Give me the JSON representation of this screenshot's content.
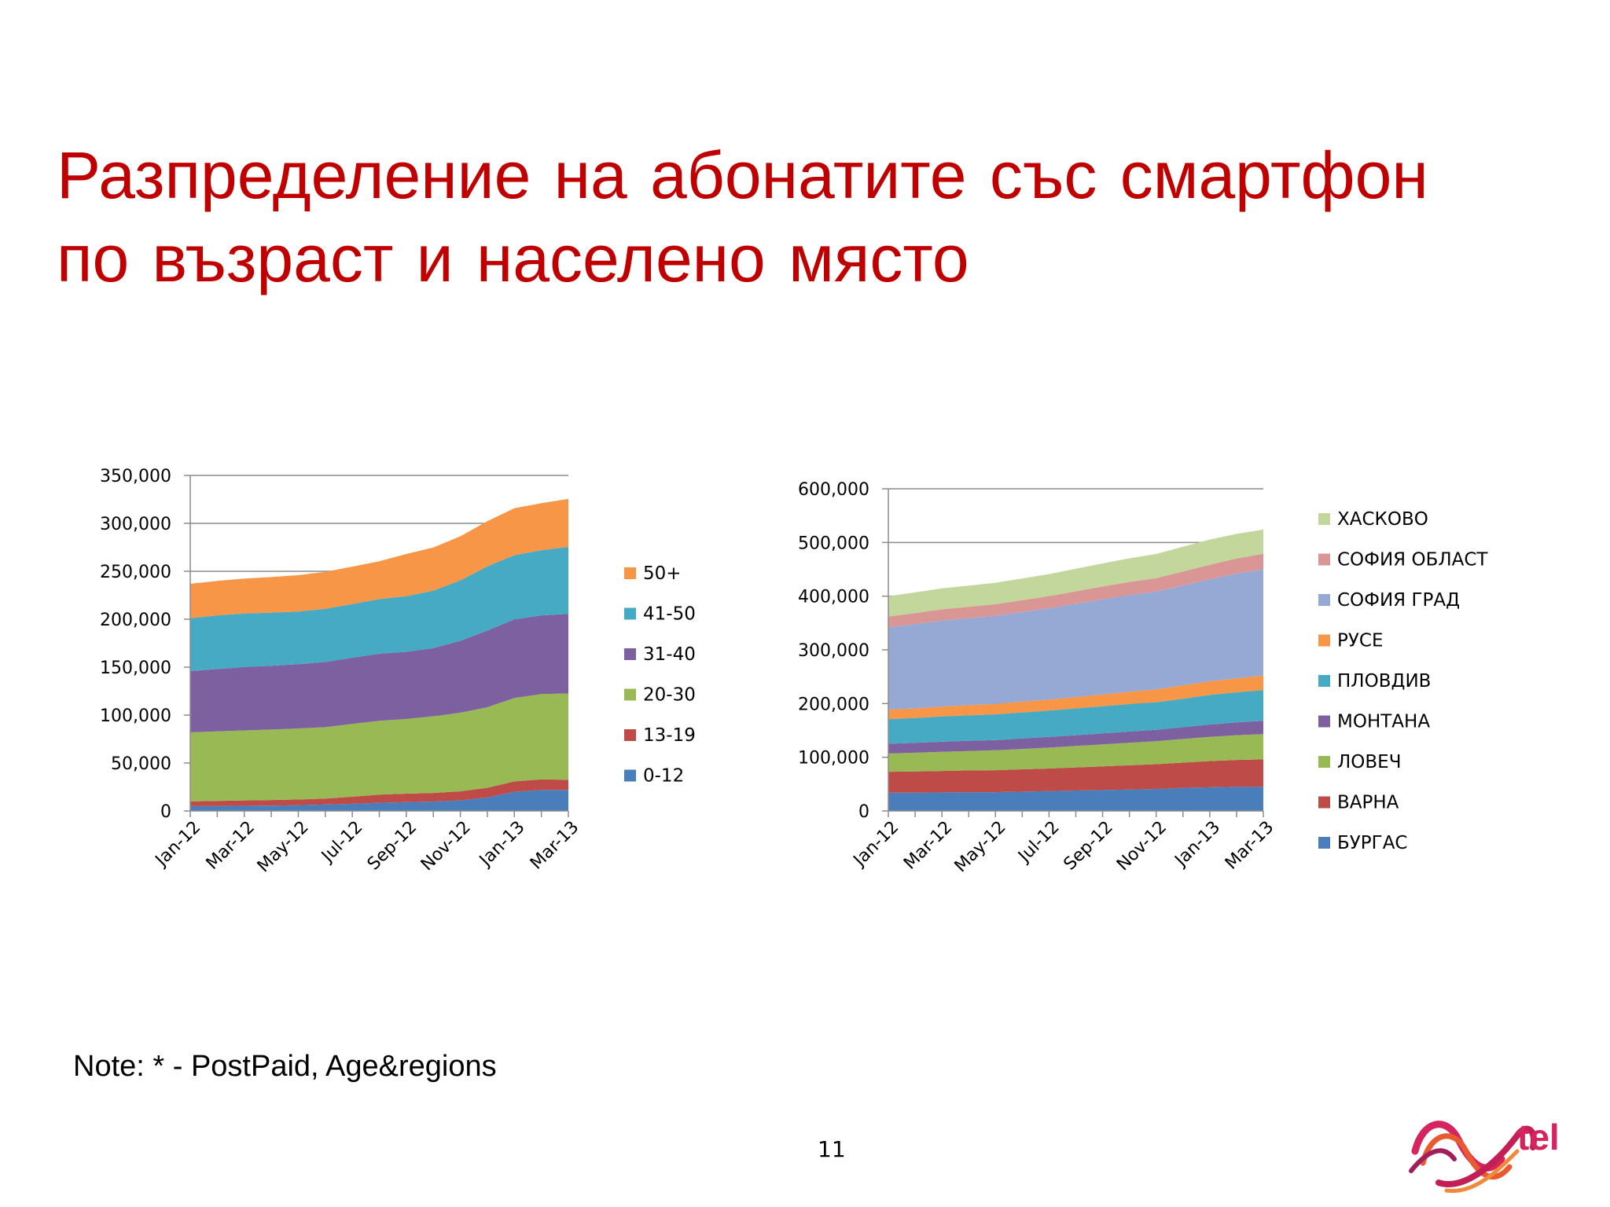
{
  "title_line1": "Разпределение на абонатите със смартфон",
  "title_line2": "по възраст и населено място",
  "note": "Note: * - PostPaid, Age&regions",
  "page_number": "11",
  "logo_text": "tel",
  "chart_data": [
    {
      "type": "area",
      "stacked": true,
      "x": [
        "Jan-12",
        "Feb-12",
        "Mar-12",
        "Apr-12",
        "May-12",
        "Jun-12",
        "Jul-12",
        "Aug-12",
        "Sep-12",
        "Oct-12",
        "Nov-12",
        "Dec-12",
        "Jan-13",
        "Feb-13",
        "Mar-13"
      ],
      "x_tick_labels": [
        "Jan-12",
        "Mar-12",
        "May-12",
        "Jul-12",
        "Sep-12",
        "Nov-12",
        "Jan-13",
        "Mar-13"
      ],
      "ylim": [
        0,
        350000
      ],
      "y_ticks": [
        "0",
        "50,000",
        "100,000",
        "150,000",
        "200,000",
        "250,000",
        "300,000",
        "350,000"
      ],
      "grid": "major horizontal",
      "legend_position": "right",
      "series": [
        {
          "name": "0-12",
          "color": "#4a7ebb",
          "values": [
            5000,
            5200,
            5400,
            5600,
            6000,
            6600,
            7500,
            8500,
            9200,
            9800,
            11000,
            14000,
            20000,
            22000,
            22000
          ]
        },
        {
          "name": "13-19",
          "color": "#be4b48",
          "values": [
            5000,
            5300,
            5600,
            5800,
            6000,
            6300,
            7300,
            8500,
            8800,
            9000,
            9500,
            10200,
            10800,
            11000,
            10500
          ]
        },
        {
          "name": "20-30",
          "color": "#98b954",
          "values": [
            72000,
            72500,
            73000,
            73500,
            74000,
            74500,
            76000,
            77000,
            78000,
            80000,
            82000,
            84000,
            87000,
            89000,
            90000
          ]
        },
        {
          "name": "31-40",
          "color": "#7d60a0",
          "values": [
            64000,
            65000,
            66000,
            66500,
            67000,
            68000,
            69000,
            70000,
            70000,
            71000,
            75000,
            80000,
            82000,
            82000,
            83000
          ]
        },
        {
          "name": "41-50",
          "color": "#46aac5",
          "values": [
            55000,
            56000,
            56000,
            55500,
            55000,
            55500,
            56000,
            57000,
            58000,
            60000,
            63000,
            67000,
            67000,
            68000,
            70000
          ]
        },
        {
          "name": "50+",
          "color": "#f79646",
          "values": [
            36000,
            36000,
            36500,
            37000,
            38000,
            38500,
            39000,
            39500,
            44000,
            45000,
            46000,
            47000,
            49000,
            49000,
            50000
          ]
        }
      ]
    },
    {
      "type": "area",
      "stacked": true,
      "x": [
        "Jan-12",
        "Feb-12",
        "Mar-12",
        "Apr-12",
        "May-12",
        "Jun-12",
        "Jul-12",
        "Aug-12",
        "Sep-12",
        "Oct-12",
        "Nov-12",
        "Dec-12",
        "Jan-13",
        "Feb-13",
        "Mar-13"
      ],
      "x_tick_labels": [
        "Jan-12",
        "Mar-12",
        "May-12",
        "Jul-12",
        "Sep-12",
        "Nov-12",
        "Jan-13",
        "Mar-13"
      ],
      "ylim": [
        0,
        600000
      ],
      "y_ticks": [
        "0",
        "100,000",
        "200,000",
        "300,000",
        "400,000",
        "500,000",
        "600,000"
      ],
      "grid": "major horizontal",
      "legend_position": "right",
      "series": [
        {
          "name": "БУРГАС",
          "color": "#4a7ebb",
          "values": [
            34000,
            34000,
            34500,
            35000,
            35000,
            36000,
            37000,
            38000,
            39000,
            40000,
            41000,
            43000,
            44000,
            45000,
            45000
          ]
        },
        {
          "name": "ВАРНА",
          "color": "#be4b48",
          "values": [
            39000,
            39500,
            40000,
            40500,
            41000,
            41500,
            42000,
            43000,
            44000,
            45000,
            46000,
            47000,
            49000,
            50000,
            51000
          ]
        },
        {
          "name": "ЛОВЕЧ",
          "color": "#98b954",
          "values": [
            34000,
            35000,
            35500,
            36000,
            37000,
            38000,
            39000,
            40000,
            41000,
            42000,
            43000,
            44000,
            45000,
            46000,
            47000
          ]
        },
        {
          "name": "МОНТАНА",
          "color": "#7d60a0",
          "values": [
            18000,
            18500,
            19000,
            19000,
            19000,
            19500,
            20000,
            20000,
            20500,
            21000,
            21000,
            22000,
            23000,
            24000,
            25000
          ]
        },
        {
          "name": "ПЛОВДИВ",
          "color": "#46aac5",
          "values": [
            46000,
            46000,
            47000,
            47500,
            48000,
            48500,
            49000,
            50000,
            50500,
            51000,
            51500,
            53000,
            55000,
            56000,
            57000
          ]
        },
        {
          "name": "РУСЕ",
          "color": "#f79646",
          "values": [
            18000,
            18000,
            18500,
            19000,
            19500,
            20000,
            20500,
            21000,
            22000,
            23000,
            24000,
            25000,
            25500,
            26000,
            27000
          ]
        },
        {
          "name": "СОФИЯ ГРАД",
          "color": "#95a9d4",
          "values": [
            153000,
            157000,
            160000,
            162000,
            164000,
            167000,
            170000,
            174000,
            177000,
            180000,
            182000,
            186000,
            190000,
            195000,
            198000
          ]
        },
        {
          "name": "СОФИЯ ОБЛАСТ",
          "color": "#d99694",
          "values": [
            20000,
            20500,
            21000,
            21000,
            21500,
            22000,
            22500,
            23000,
            24000,
            24500,
            25000,
            26000,
            27000,
            28000,
            29000
          ]
        },
        {
          "name": "ХАСКОВО",
          "color": "#c3d69b",
          "values": [
            38000,
            38500,
            39000,
            39500,
            40000,
            40500,
            41000,
            42000,
            43000,
            44000,
            45000,
            46000,
            47000,
            46000,
            45000
          ]
        }
      ]
    }
  ]
}
